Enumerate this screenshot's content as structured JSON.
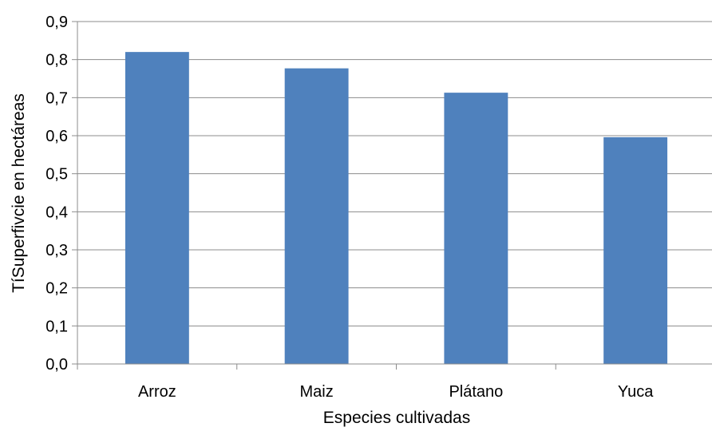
{
  "chart_data": {
    "type": "bar",
    "categories": [
      "Arroz",
      "Maiz",
      "Plátano",
      "Yuca"
    ],
    "values": [
      0.82,
      0.777,
      0.713,
      0.596
    ],
    "title": "",
    "xlabel": "Especies cultivadas",
    "ylabel": "TíSuperfivcie en hectáreas",
    "ylim": [
      0,
      0.9
    ],
    "yticks": [
      "0,0",
      "0,1",
      "0,2",
      "0,3",
      "0,4",
      "0,5",
      "0,6",
      "0,7",
      "0,8",
      "0,9"
    ],
    "grid": true,
    "legend": "none",
    "bar_color": "#4f81bd",
    "grid_color": "#8c8c8c"
  }
}
